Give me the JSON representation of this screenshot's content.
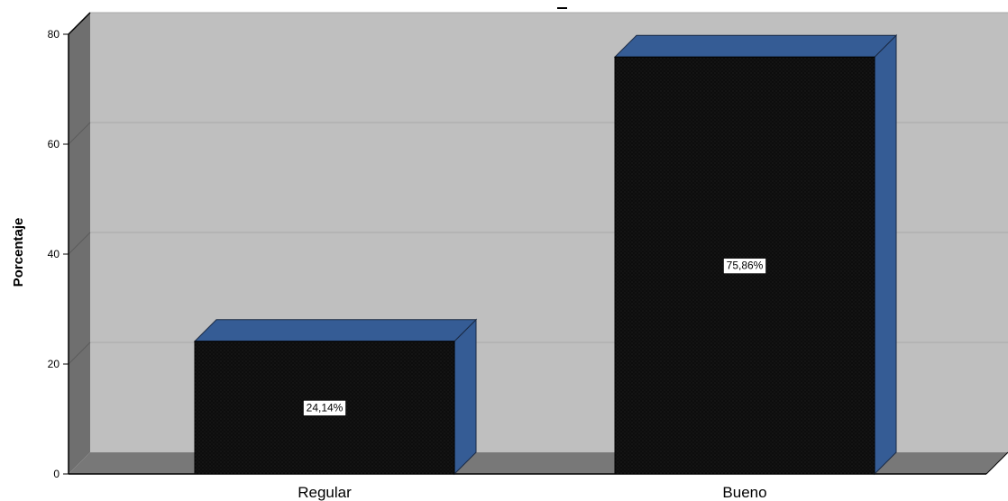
{
  "chart_data": {
    "type": "bar",
    "title": "",
    "xlabel": "",
    "ylabel": "Porcentaje",
    "categories": [
      "Regular",
      "Bueno"
    ],
    "values": [
      24.14,
      75.86
    ],
    "data_labels": [
      "24,14%",
      "75,86%"
    ],
    "ylim": [
      0,
      80
    ],
    "yticks": [
      0,
      20,
      40,
      60,
      80
    ],
    "ytick_labels": [
      "0",
      "20",
      "40",
      "60",
      "80"
    ],
    "grid": true,
    "style": "3d",
    "colors": {
      "plot_back_wall": "#bfbfbf",
      "side_wall": "#6f6f6f",
      "floor": "#787878",
      "gridline": "#a9a9a9",
      "bar_front": "#0e0e0e",
      "bar_top_side": "#355c95",
      "bar_edge": "#1a2a44"
    }
  }
}
